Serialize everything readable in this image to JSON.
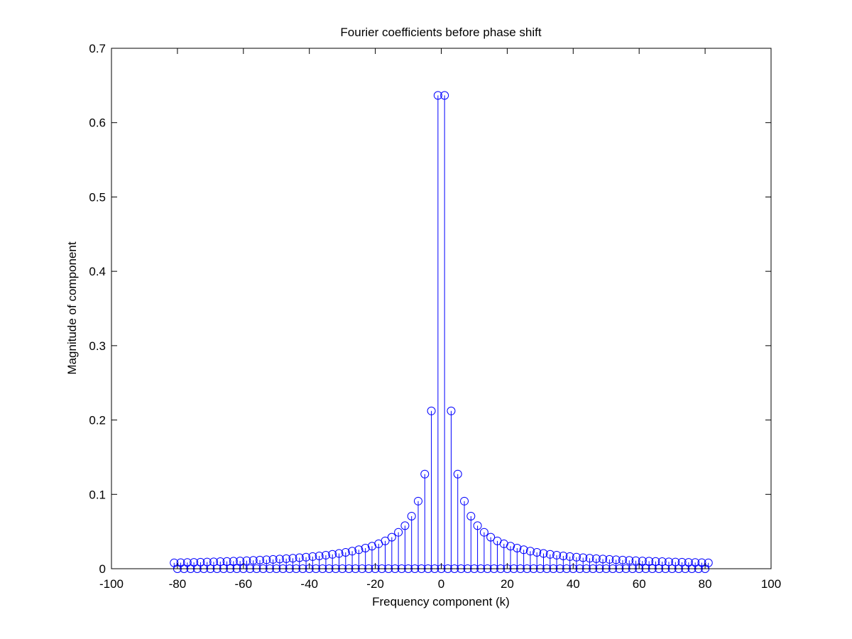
{
  "chart_data": {
    "type": "stem",
    "title": "Fourier coefficients before phase shift",
    "xlabel": "Frequency component (k)",
    "ylabel": "Magnitude of component",
    "xlim": [
      -100,
      100
    ],
    "ylim": [
      0,
      0.7
    ],
    "xticks": [
      -100,
      -80,
      -60,
      -40,
      -20,
      0,
      20,
      40,
      60,
      80,
      100
    ],
    "xtick_labels": [
      "-100",
      "-80",
      "-60",
      "-40",
      "-20",
      "0",
      "20",
      "40",
      "60",
      "80",
      "100"
    ],
    "yticks": [
      0,
      0.1,
      0.2,
      0.3,
      0.4,
      0.5,
      0.6,
      0.7
    ],
    "ytick_labels": [
      "0",
      "0.1",
      "0.2",
      "0.3",
      "0.4",
      "0.5",
      "0.6",
      "0.7"
    ],
    "grid": false,
    "marker": "circle",
    "color": "#0000ff",
    "x": [
      -81,
      -80,
      -79,
      -78,
      -77,
      -76,
      -75,
      -74,
      -73,
      -72,
      -71,
      -70,
      -69,
      -68,
      -67,
      -66,
      -65,
      -64,
      -63,
      -62,
      -61,
      -60,
      -59,
      -58,
      -57,
      -56,
      -55,
      -54,
      -53,
      -52,
      -51,
      -50,
      -49,
      -48,
      -47,
      -46,
      -45,
      -44,
      -43,
      -42,
      -41,
      -40,
      -39,
      -38,
      -37,
      -36,
      -35,
      -34,
      -33,
      -32,
      -31,
      -30,
      -29,
      -28,
      -27,
      -26,
      -25,
      -24,
      -23,
      -22,
      -21,
      -20,
      -19,
      -18,
      -17,
      -16,
      -15,
      -14,
      -13,
      -12,
      -11,
      -10,
      -9,
      -8,
      -7,
      -6,
      -5,
      -4,
      -3,
      -2,
      -1,
      0,
      1,
      2,
      3,
      4,
      5,
      6,
      7,
      8,
      9,
      10,
      11,
      12,
      13,
      14,
      15,
      16,
      17,
      18,
      19,
      20,
      21,
      22,
      23,
      24,
      25,
      26,
      27,
      28,
      29,
      30,
      31,
      32,
      33,
      34,
      35,
      36,
      37,
      38,
      39,
      40,
      41,
      42,
      43,
      44,
      45,
      46,
      47,
      48,
      49,
      50,
      51,
      52,
      53,
      54,
      55,
      56,
      57,
      58,
      59,
      60,
      61,
      62,
      63,
      64,
      65,
      66,
      67,
      68,
      69,
      70,
      71,
      72,
      73,
      74,
      75,
      76,
      77,
      78,
      79,
      80,
      81
    ],
    "y": [
      0.0079,
      0.0,
      0.0081,
      0.0,
      0.0083,
      0.0,
      0.0085,
      0.0,
      0.0087,
      0.0,
      0.009,
      0.0,
      0.0092,
      0.0,
      0.0095,
      0.0,
      0.0098,
      0.0,
      0.0101,
      0.0,
      0.0104,
      0.0,
      0.0108,
      0.0,
      0.0112,
      0.0,
      0.0116,
      0.0,
      0.012,
      0.0,
      0.0125,
      0.0,
      0.013,
      0.0,
      0.0135,
      0.0,
      0.0141,
      0.0,
      0.0148,
      0.0,
      0.0155,
      0.0,
      0.0163,
      0.0,
      0.0172,
      0.0,
      0.0182,
      0.0,
      0.0193,
      0.0,
      0.0205,
      0.0,
      0.022,
      0.0,
      0.0236,
      0.0,
      0.0255,
      0.0,
      0.0277,
      0.0,
      0.0303,
      0.0,
      0.0335,
      0.0,
      0.0374,
      0.0,
      0.0424,
      0.0,
      0.049,
      0.0,
      0.0579,
      0.0,
      0.0707,
      0.0,
      0.0909,
      0.0,
      0.1273,
      0.0,
      0.2122,
      0.0,
      0.6366,
      0.0,
      0.6366,
      0.0,
      0.2122,
      0.0,
      0.1273,
      0.0,
      0.0909,
      0.0,
      0.0707,
      0.0,
      0.0579,
      0.0,
      0.049,
      0.0,
      0.0424,
      0.0,
      0.0374,
      0.0,
      0.0335,
      0.0,
      0.0303,
      0.0,
      0.0277,
      0.0,
      0.0255,
      0.0,
      0.0236,
      0.0,
      0.022,
      0.0,
      0.0205,
      0.0,
      0.0193,
      0.0,
      0.0182,
      0.0,
      0.0172,
      0.0,
      0.0163,
      0.0,
      0.0155,
      0.0,
      0.0148,
      0.0,
      0.0141,
      0.0,
      0.0135,
      0.0,
      0.013,
      0.0,
      0.0125,
      0.0,
      0.012,
      0.0,
      0.0116,
      0.0,
      0.0112,
      0.0,
      0.0108,
      0.0,
      0.0104,
      0.0,
      0.0101,
      0.0,
      0.0098,
      0.0,
      0.0095,
      0.0,
      0.0092,
      0.0,
      0.009,
      0.0,
      0.0087,
      0.0,
      0.0085,
      0.0,
      0.0083,
      0.0,
      0.0081,
      0.0,
      0.0079
    ]
  }
}
